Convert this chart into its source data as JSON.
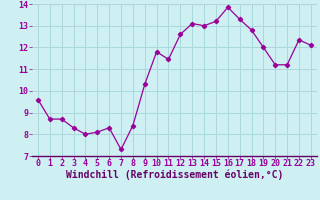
{
  "x": [
    0,
    1,
    2,
    3,
    4,
    5,
    6,
    7,
    8,
    9,
    10,
    11,
    12,
    13,
    14,
    15,
    16,
    17,
    18,
    19,
    20,
    21,
    22,
    23
  ],
  "y": [
    9.6,
    8.7,
    8.7,
    8.3,
    8.0,
    8.1,
    8.3,
    7.3,
    8.4,
    10.3,
    11.8,
    11.45,
    12.6,
    13.1,
    13.0,
    13.2,
    13.85,
    13.3,
    12.8,
    12.0,
    11.2,
    11.2,
    12.35,
    12.1
  ],
  "line_color": "#990099",
  "marker": "D",
  "marker_size": 2.2,
  "background_color": "#cff0f2",
  "grid_color": "#aad8dc",
  "xlabel": "Windchill (Refroidissement éolien,°C)",
  "xlabel_color": "#660066",
  "ylim": [
    7,
    14
  ],
  "xlim": [
    -0.5,
    23.5
  ],
  "yticks": [
    7,
    8,
    9,
    10,
    11,
    12,
    13,
    14
  ],
  "xticks": [
    0,
    1,
    2,
    3,
    4,
    5,
    6,
    7,
    8,
    9,
    10,
    11,
    12,
    13,
    14,
    15,
    16,
    17,
    18,
    19,
    20,
    21,
    22,
    23
  ],
  "tick_label_fontsize": 6.0,
  "xlabel_fontsize": 7.0,
  "spine_color": "#660066"
}
